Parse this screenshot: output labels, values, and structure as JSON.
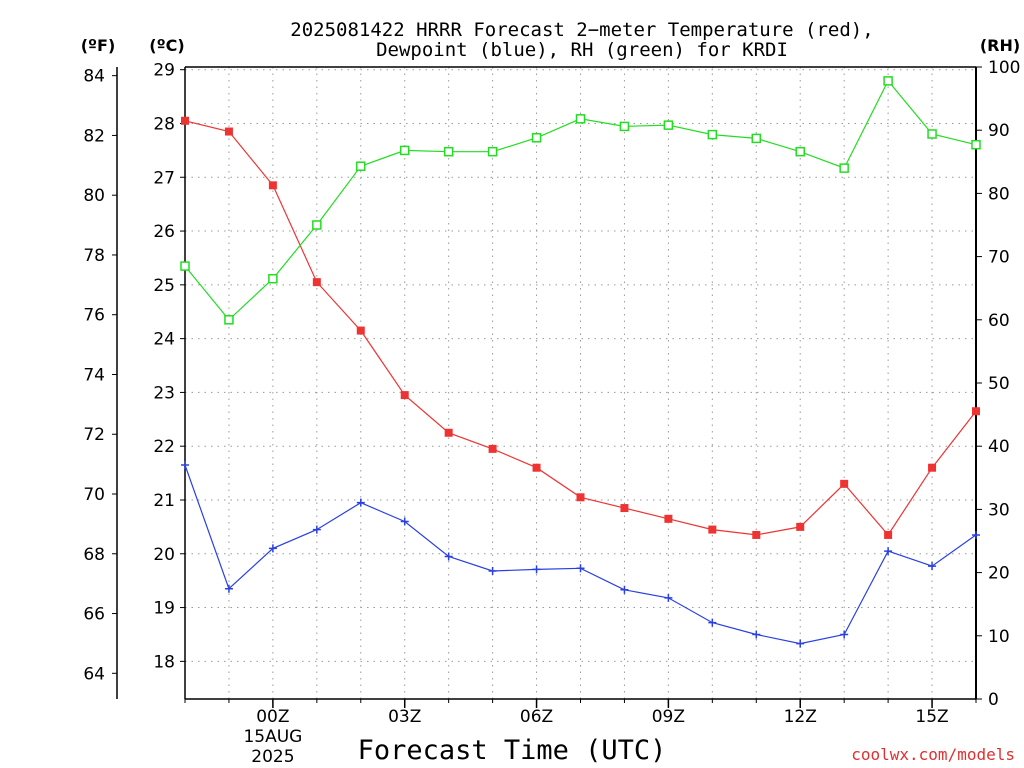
{
  "chart_data": {
    "type": "line",
    "title_lines": [
      "2025081422 HRRR Forecast 2−meter Temperature (red),",
      "Dewpoint (blue), RH (green) for KRDI"
    ],
    "xlabel": "Forecast Time (UTC)",
    "credit": "coolwx.com/models",
    "units": {
      "fahrenheit": "(ºF)",
      "celsius": "(ºC)",
      "rh": "(RH)"
    },
    "x": [
      -2,
      -1,
      0,
      1,
      2,
      3,
      4,
      5,
      6,
      7,
      8,
      9,
      10,
      11,
      12,
      13,
      14,
      15,
      16
    ],
    "x_ticks": [
      {
        "x": 0,
        "label": "00Z",
        "sublabels": [
          "15AUG",
          "2025"
        ]
      },
      {
        "x": 3,
        "label": "03Z",
        "sublabels": []
      },
      {
        "x": 6,
        "label": "06Z",
        "sublabels": []
      },
      {
        "x": 9,
        "label": "09Z",
        "sublabels": []
      },
      {
        "x": 12,
        "label": "12Z",
        "sublabels": []
      },
      {
        "x": 15,
        "label": "15Z",
        "sublabels": []
      }
    ],
    "y_celsius": {
      "range": [
        17.3,
        29.05
      ],
      "ticks": [
        18,
        19,
        20,
        21,
        22,
        23,
        24,
        25,
        26,
        27,
        28,
        29
      ]
    },
    "y_fahrenheit": {
      "range": [
        63.14,
        84.29
      ],
      "ticks": [
        64,
        66,
        68,
        70,
        72,
        74,
        76,
        78,
        80,
        82,
        84
      ]
    },
    "y_rh": {
      "range": [
        0,
        100
      ],
      "ticks": [
        0,
        10,
        20,
        30,
        40,
        50,
        60,
        70,
        80,
        90,
        100
      ]
    },
    "grid": true,
    "series": [
      {
        "name": "Temperature",
        "axis": "celsius",
        "color": "#ee3333",
        "marker": "filled-square",
        "values": [
          28.05,
          27.85,
          26.85,
          25.05,
          24.15,
          22.95,
          22.25,
          21.95,
          21.6,
          21.05,
          20.85,
          20.65,
          20.45,
          20.35,
          20.5,
          21.3,
          20.35,
          21.6,
          22.65
        ]
      },
      {
        "name": "Dewpoint",
        "axis": "celsius",
        "color": "#2a40e0",
        "marker": "plus",
        "values": [
          21.65,
          19.35,
          20.1,
          20.45,
          20.95,
          20.6,
          19.95,
          19.68,
          19.71,
          19.73,
          19.33,
          19.18,
          18.72,
          18.5,
          18.33,
          18.5,
          20.05,
          19.77,
          20.35
        ]
      },
      {
        "name": "RH",
        "axis": "rh",
        "color": "#22dd22",
        "marker": "open-square",
        "values": [
          68.5,
          60.0,
          66.5,
          75.0,
          84.3,
          86.8,
          86.6,
          86.6,
          88.8,
          91.8,
          90.6,
          90.8,
          89.3,
          88.7,
          86.6,
          84.0,
          97.8,
          89.4,
          87.7
        ]
      }
    ]
  }
}
